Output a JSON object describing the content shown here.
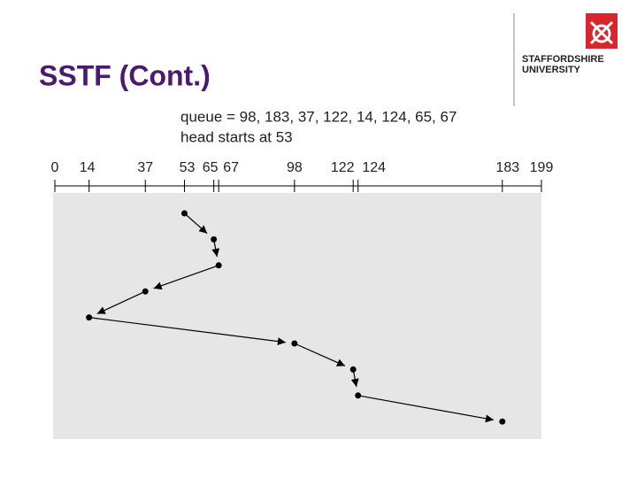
{
  "title": "SSTF (Cont.)",
  "logo": {
    "line1": "STAFFORDSHIRE",
    "line2": "UNIVERSITY"
  },
  "diagram": {
    "queue_label": "queue = 98, 183, 37, 122, 14, 124, 65, 67",
    "head_label": "head starts at 53",
    "axis_range": [
      0,
      199
    ],
    "axis_ticks": [
      0,
      14,
      37,
      53,
      65,
      67,
      98,
      122,
      124,
      183,
      199
    ],
    "path": [
      53,
      65,
      67,
      37,
      14,
      98,
      122,
      124,
      183
    ]
  }
}
